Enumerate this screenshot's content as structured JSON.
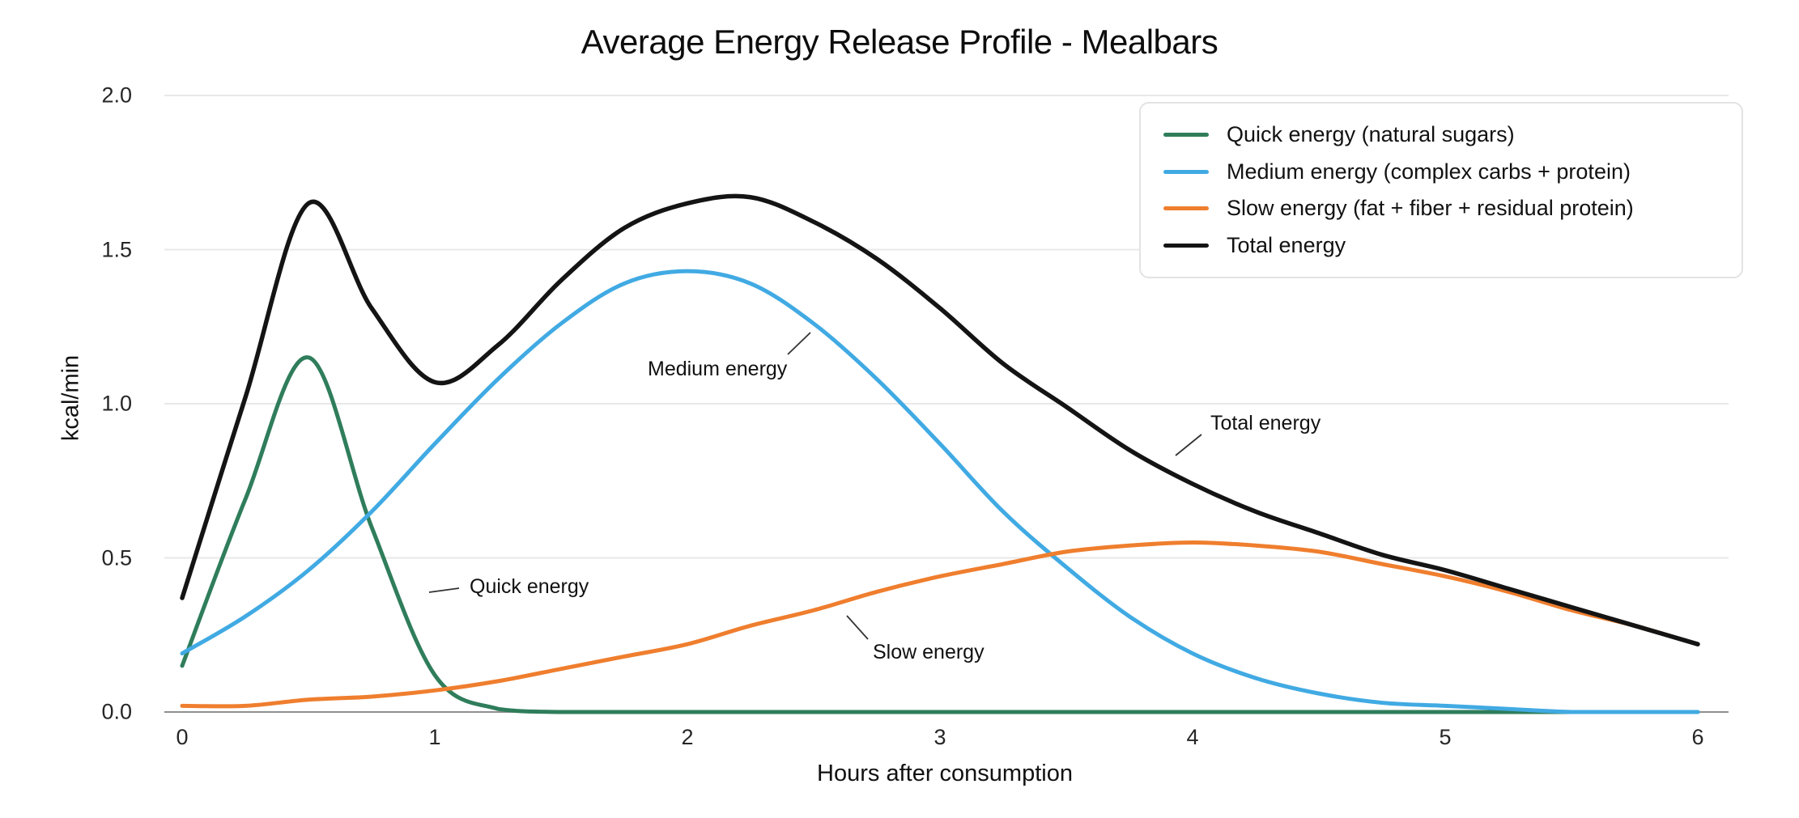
{
  "chart_data": {
    "type": "line",
    "title": "Average Energy Release Profile - Mealbars",
    "xlabel": "Hours after consumption",
    "ylabel": "kcal/min",
    "xlim": [
      0,
      6
    ],
    "ylim": [
      0,
      2
    ],
    "grid": true,
    "legend_position": "upper right",
    "xticks": [
      "0",
      "1",
      "2",
      "3",
      "4",
      "5",
      "6"
    ],
    "yticks": [
      "0.0",
      "0.5",
      "1.0",
      "1.5",
      "2.0"
    ],
    "ytick_values": [
      0,
      0.5,
      1.0,
      1.5,
      2.0
    ],
    "x": [
      0,
      0.25,
      0.5,
      0.75,
      1.0,
      1.25,
      1.5,
      1.75,
      2.0,
      2.25,
      2.5,
      2.75,
      3.0,
      3.25,
      3.5,
      3.75,
      4.0,
      4.25,
      4.5,
      4.75,
      5.0,
      5.25,
      5.5,
      5.75,
      6.0
    ],
    "series": [
      {
        "name": "Quick energy (natural sugars)",
        "color": "#2F7D5B",
        "values": [
          0.15,
          0.69,
          1.15,
          0.6,
          0.12,
          0.01,
          0,
          0,
          0,
          0,
          0,
          0,
          0,
          0,
          0,
          0,
          0,
          0,
          0,
          0,
          0,
          0,
          0,
          0,
          0
        ]
      },
      {
        "name": "Medium energy (complex carbs + protein)",
        "color": "#41AAE3",
        "values": [
          0.19,
          0.31,
          0.46,
          0.65,
          0.87,
          1.08,
          1.26,
          1.39,
          1.43,
          1.39,
          1.26,
          1.08,
          0.87,
          0.65,
          0.47,
          0.31,
          0.19,
          0.11,
          0.06,
          0.03,
          0.02,
          0.01,
          0,
          0,
          0
        ]
      },
      {
        "name": "Slow energy (fat + fiber + residual protein)",
        "color": "#EF7E2E",
        "values": [
          0.02,
          0.02,
          0.04,
          0.05,
          0.07,
          0.1,
          0.14,
          0.18,
          0.22,
          0.28,
          0.33,
          0.39,
          0.44,
          0.48,
          0.52,
          0.54,
          0.55,
          0.54,
          0.52,
          0.48,
          0.44,
          0.39,
          0.33,
          0.28,
          0.22
        ]
      },
      {
        "name": "Total energy",
        "color": "#141414",
        "values": [
          0.37,
          1.02,
          1.65,
          1.31,
          1.07,
          1.19,
          1.4,
          1.57,
          1.65,
          1.67,
          1.59,
          1.47,
          1.31,
          1.13,
          0.99,
          0.85,
          0.74,
          0.65,
          0.58,
          0.51,
          0.46,
          0.4,
          0.34,
          0.28,
          0.22
        ]
      }
    ],
    "annotations": [
      {
        "label": "Quick energy"
      },
      {
        "label": "Medium energy"
      },
      {
        "label": "Total energy"
      },
      {
        "label": "Slow energy"
      }
    ],
    "colors": {
      "grid": "#E8E8E8",
      "axis": "#8F8F8F",
      "text": "#111111",
      "background": "#FFFFFF"
    }
  }
}
